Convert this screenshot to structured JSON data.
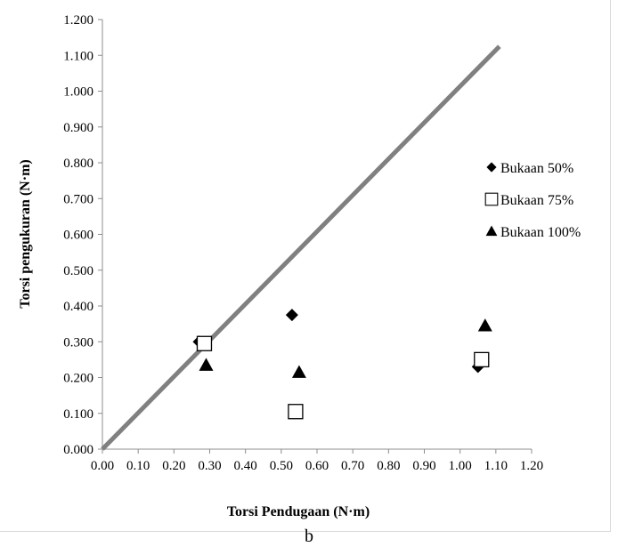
{
  "chart_data": {
    "type": "scatter",
    "xlabel": "Torsi Pendugaan (N·m)",
    "ylabel": "Torsi pengukuran (N·m)",
    "xlim": [
      0,
      1.2
    ],
    "ylim": [
      0,
      1.2
    ],
    "x_ticks": [
      "0.00",
      "0.10",
      "0.20",
      "0.30",
      "0.40",
      "0.50",
      "0.60",
      "0.70",
      "0.80",
      "0.90",
      "1.00",
      "1.10",
      "1.20"
    ],
    "y_ticks": [
      "0.000",
      "0.100",
      "0.200",
      "0.300",
      "0.400",
      "0.500",
      "0.600",
      "0.700",
      "0.800",
      "0.900",
      "1.000",
      "1.100",
      "1.200"
    ],
    "grid": false,
    "legend_position": "right",
    "series": [
      {
        "name": "Bukaan 50%",
        "marker": "diamond",
        "color": "#000000",
        "points": [
          [
            0.27,
            0.3
          ],
          [
            0.53,
            0.375
          ],
          [
            1.05,
            0.23
          ]
        ]
      },
      {
        "name": "Bukaan 75%",
        "marker": "square-open",
        "color": "#000000",
        "points": [
          [
            0.285,
            0.295
          ],
          [
            0.54,
            0.105
          ],
          [
            1.06,
            0.25
          ]
        ]
      },
      {
        "name": "Bukaan 100%",
        "marker": "triangle",
        "color": "#000000",
        "points": [
          [
            0.29,
            0.235
          ],
          [
            0.55,
            0.215
          ],
          [
            1.07,
            0.345
          ]
        ]
      }
    ],
    "reference_line": {
      "x": [
        0,
        1.11
      ],
      "y": [
        0,
        1.125
      ],
      "color": "#808080"
    }
  },
  "caption": "b"
}
